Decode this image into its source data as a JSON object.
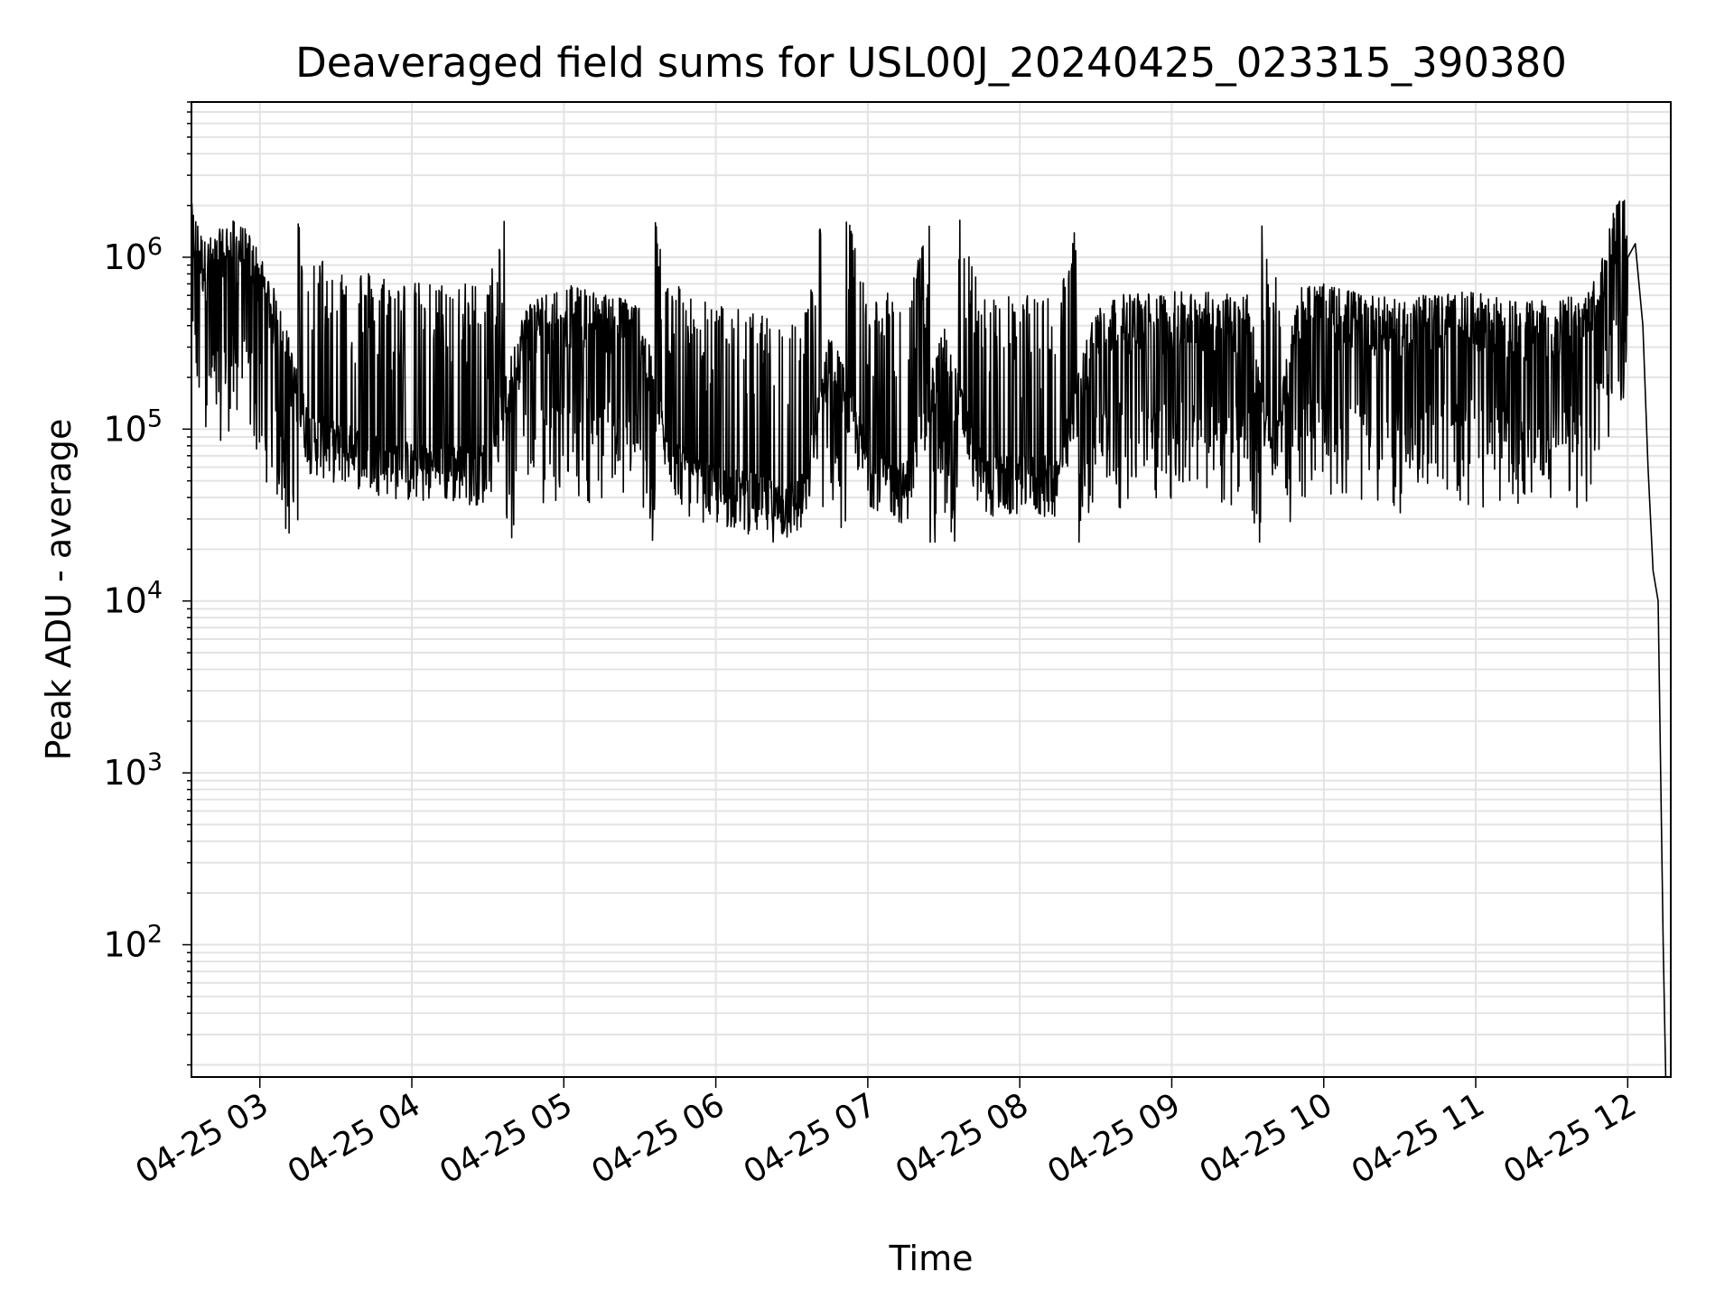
{
  "chart_data": {
    "type": "line",
    "title": "Deaveraged field sums for USL00J_20240425_023315_390380",
    "xlabel": "Time",
    "ylabel": "Peak ADU - average",
    "yscale": "log",
    "grid": true,
    "x_ticks": [
      "04-25 03",
      "04-25 04",
      "04-25 05",
      "04-25 06",
      "04-25 07",
      "04-25 08",
      "04-25 09",
      "04-25 10",
      "04-25 11",
      "04-25 12"
    ],
    "y_ticks": [
      {
        "base": "10",
        "exp": "2",
        "value": 100
      },
      {
        "base": "10",
        "exp": "3",
        "value": 1000
      },
      {
        "base": "10",
        "exp": "4",
        "value": 10000
      },
      {
        "base": "10",
        "exp": "5",
        "value": 100000
      },
      {
        "base": "10",
        "exp": "6",
        "value": 1000000
      }
    ],
    "xlim": [
      "2024-04-25 02:33",
      "2024-04-25 12:17"
    ],
    "ylim": [
      17,
      8000000
    ],
    "series": [
      {
        "color": "#000000",
        "x": [
          "2024-04-25 02:33",
          "2024-04-25 02:38",
          "2024-04-25 02:43",
          "2024-04-25 02:48",
          "2024-04-25 02:53",
          "2024-04-25 02:58",
          "2024-04-25 03:05",
          "2024-04-25 03:10",
          "2024-04-25 03:15",
          "2024-04-25 03:20",
          "2024-04-25 03:30",
          "2024-04-25 03:45",
          "2024-04-25 04:00",
          "2024-04-25 04:15",
          "2024-04-25 04:30",
          "2024-04-25 04:45",
          "2024-04-25 05:00",
          "2024-04-25 05:15",
          "2024-04-25 05:30",
          "2024-04-25 05:40",
          "2024-04-25 05:50",
          "2024-04-25 06:00",
          "2024-04-25 06:15",
          "2024-04-25 06:25",
          "2024-04-25 06:35",
          "2024-04-25 06:45",
          "2024-04-25 07:00",
          "2024-04-25 07:15",
          "2024-04-25 07:30",
          "2024-04-25 07:45",
          "2024-04-25 08:00",
          "2024-04-25 08:15",
          "2024-04-25 08:30",
          "2024-04-25 08:45",
          "2024-04-25 09:00",
          "2024-04-25 09:15",
          "2024-04-25 09:30",
          "2024-04-25 09:40",
          "2024-04-25 09:50",
          "2024-04-25 10:00",
          "2024-04-25 10:15",
          "2024-04-25 10:30",
          "2024-04-25 10:45",
          "2024-04-25 11:00",
          "2024-04-25 11:15",
          "2024-04-25 11:30",
          "2024-04-25 11:45",
          "2024-04-25 11:50",
          "2024-04-25 11:55",
          "2024-04-25 12:00",
          "2024-04-25 12:03",
          "2024-04-25 12:06",
          "2024-04-25 12:08",
          "2024-04-25 12:10",
          "2024-04-25 12:12",
          "2024-04-25 12:14",
          "2024-04-25 12:15"
        ],
        "y": [
          1500000,
          900000,
          1000000,
          1200000,
          1100000,
          900000,
          500000,
          300000,
          150000,
          90000,
          80000,
          70000,
          60000,
          60000,
          60000,
          400000,
          500000,
          450000,
          400000,
          80000,
          50000,
          45000,
          40000,
          35000,
          40000,
          300000,
          60000,
          45000,
          300000,
          50000,
          50000,
          50000,
          400000,
          450000,
          450000,
          450000,
          450000,
          60000,
          500000,
          500000,
          450000,
          400000,
          450000,
          450000,
          400000,
          400000,
          450000,
          800000,
          1500000,
          1600000,
          1200000,
          400000,
          60000,
          15000,
          10000,
          100,
          17
        ]
      }
    ]
  }
}
